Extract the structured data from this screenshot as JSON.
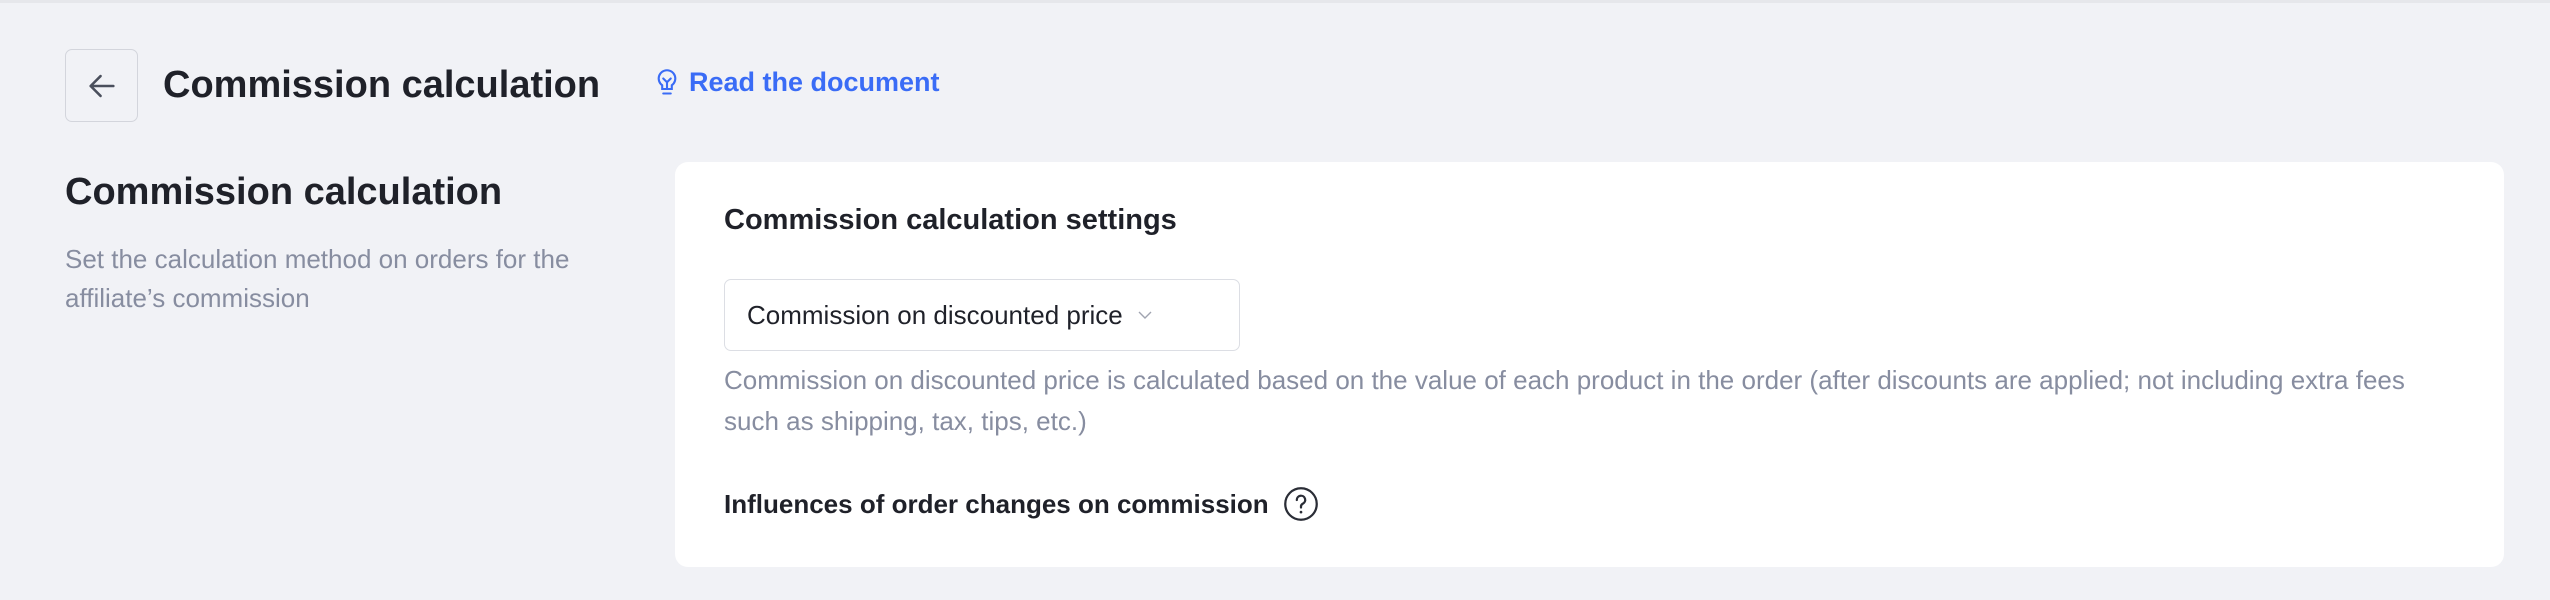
{
  "header": {
    "title": "Commission calculation",
    "doc_link": "Read the document",
    "accent": "#3a6cf6"
  },
  "section": {
    "heading": "Commission calculation",
    "description": "Set the calculation method on orders for the affiliate’s commission"
  },
  "card": {
    "title": "Commission calculation settings",
    "method_select": {
      "value": "Commission on discounted price"
    },
    "help_text": "Commission on discounted price is calculated based on the value of each product in the order (after discounts are applied; not including extra fees such as shipping, tax, tips, etc.)",
    "influences_label": "Influences of order changes on commission"
  }
}
